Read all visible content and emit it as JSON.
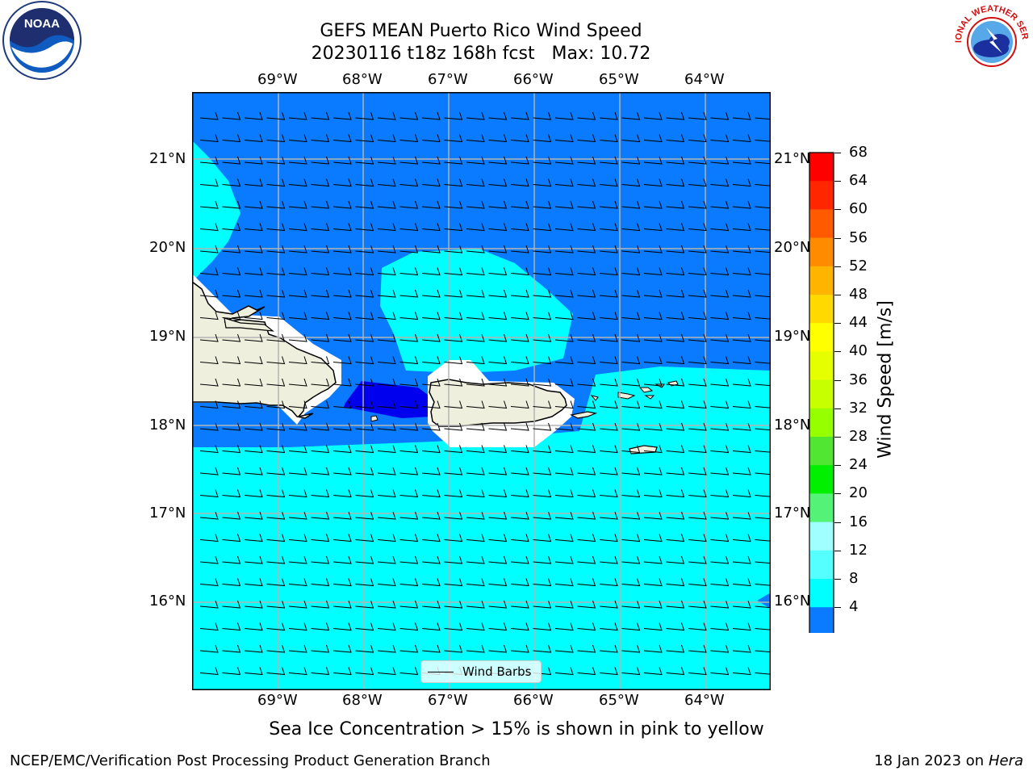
{
  "title_line1": "GEFS MEAN Puerto Rico Wind Speed",
  "title_line2": "20230116 t18z 168h fcst   Max: 10.72",
  "lon_ticks": [
    "69°W",
    "68°W",
    "67°W",
    "66°W",
    "65°W",
    "64°W"
  ],
  "lat_ticks": [
    "21°N",
    "20°N",
    "19°N",
    "18°N",
    "17°N",
    "16°N"
  ],
  "legend_label": "Wind Barbs",
  "colorbar": {
    "label": "Wind Speed [m/s]",
    "ticks": [
      "68",
      "64",
      "60",
      "56",
      "52",
      "48",
      "44",
      "40",
      "36",
      "32",
      "28",
      "24",
      "20",
      "16",
      "12",
      "8",
      "4"
    ],
    "colors": [
      "#ff0000",
      "#ff2600",
      "#ff5a00",
      "#ff8c00",
      "#ffb400",
      "#ffd900",
      "#ffff00",
      "#e6ff00",
      "#c8ff00",
      "#96ff00",
      "#50e632",
      "#00f000",
      "#55f278",
      "#a0ffff",
      "#55ffff",
      "#00ffff",
      "#0a7aff"
    ],
    "under_color": "#0000ff"
  },
  "caption": "Sea Ice Concentration > 15% is shown in pink to yellow",
  "footer_left": "NCEP/EMC/Verification Post Processing Product Generation Branch",
  "footer_right_date": "18 Jan 2023 on ",
  "footer_right_host": "Hera",
  "logo_left": "NOAA",
  "logo_right": "NATIONAL WEATHER SERVICE",
  "colors": {
    "ocean_low": "#0a7aff",
    "ocean_mid": "#00ffff",
    "land": "#efefdd",
    "calm": "#0000ee",
    "grid": "#b4b4b4"
  }
}
